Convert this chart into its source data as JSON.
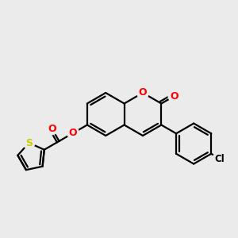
{
  "bg": "#ebebeb",
  "bond_color": "#000000",
  "O_color": "#ff0000",
  "S_color": "#cccc00",
  "Cl_color": "#000000",
  "lw": 1.6,
  "xlim": [
    0,
    10
  ],
  "ylim": [
    0,
    10
  ],
  "ring_r": 0.95,
  "cl_ring_r": 0.85,
  "th_r": 0.6
}
